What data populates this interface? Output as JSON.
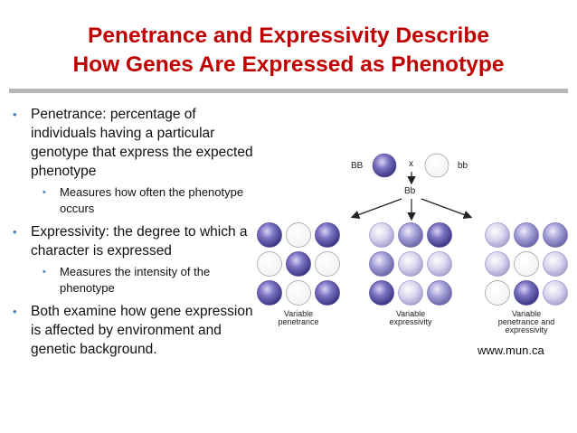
{
  "title": {
    "line1": "Penetrance and Expressivity Describe",
    "line2": "How Genes Are Expressed as Phenotype"
  },
  "bullets": [
    {
      "text": "Penetrance: percentage of individuals having a particular genotype that express the expected phenotype",
      "sub": "Measures how often the phenotype occurs"
    },
    {
      "text": "Expressivity: the degree to which a character is expressed",
      "sub": "Measures the intensity of the phenotype"
    },
    {
      "text": "Both examine how gene expression is affected by environment and genetic background."
    }
  ],
  "diagram": {
    "parent_left": "BB",
    "cross": "x",
    "parent_right": "bb",
    "offspring": "Bb",
    "groups": [
      {
        "label": "Variable penetrance",
        "cells": [
          "full",
          "none",
          "full",
          "none",
          "full",
          "none",
          "full",
          "none",
          "full"
        ]
      },
      {
        "label": "Variable expressivity",
        "cells": [
          "light",
          "medium",
          "full",
          "medium",
          "light",
          "light",
          "full",
          "light",
          "medium"
        ]
      },
      {
        "label": "Variable penetrance and expressivity",
        "cells": [
          "light",
          "medium",
          "medium",
          "light",
          "none",
          "light",
          "none",
          "full",
          "light"
        ]
      }
    ]
  },
  "credit": "www.mun.ca",
  "colors": {
    "title": "#c00000",
    "bullet": "#4a7ebb",
    "rule": "#b7b7b7",
    "full": "#5a4fa3",
    "medium": "#8c86c4",
    "light": "#cfcbe8",
    "none": "#ffffff"
  }
}
